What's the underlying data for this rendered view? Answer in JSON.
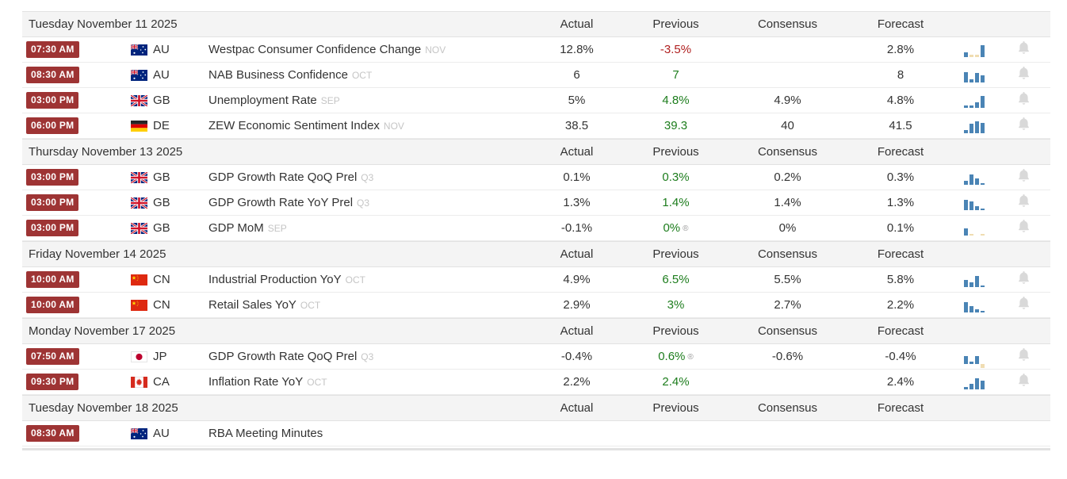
{
  "colors": {
    "time_badge_bg": "#9e3434",
    "positive_green": "#1d7d1d",
    "negative_red": "#b02020",
    "spark_blue": "#4a84b5",
    "spark_tan": "#f0ddb2",
    "bell_gray": "#d9d9d9"
  },
  "meta": {
    "revised_marker": "®"
  },
  "columns": {
    "actual": "Actual",
    "previous": "Previous",
    "consensus": "Consensus",
    "forecast": "Forecast"
  },
  "sections": [
    {
      "date": "Tuesday November 11 2025",
      "rows": [
        {
          "time": "07:30 AM",
          "country": "AU",
          "event": "Westpac Consumer Confidence Change",
          "ref": "NOV",
          "actual": "12.8%",
          "previous": "-3.5%",
          "prev_color": "red",
          "revised": false,
          "consensus": "",
          "forecast": "2.8%",
          "bell": true,
          "spark": [
            {
              "h": 6,
              "c": "blue"
            },
            {
              "h": 3,
              "c": "tan"
            },
            {
              "h": 3,
              "c": "tan"
            },
            {
              "h": 15,
              "c": "blue"
            }
          ]
        },
        {
          "time": "08:30 AM",
          "country": "AU",
          "event": "NAB Business Confidence",
          "ref": "OCT",
          "actual": "6",
          "previous": "7",
          "prev_color": "green",
          "revised": false,
          "consensus": "",
          "forecast": "8",
          "bell": true,
          "spark": [
            {
              "h": 13,
              "c": "blue"
            },
            {
              "h": 4,
              "c": "blue"
            },
            {
              "h": 12,
              "c": "blue"
            },
            {
              "h": 9,
              "c": "blue"
            }
          ]
        },
        {
          "time": "03:00 PM",
          "country": "GB",
          "event": "Unemployment Rate",
          "ref": "SEP",
          "actual": "5%",
          "previous": "4.8%",
          "prev_color": "green",
          "revised": false,
          "consensus": "4.9%",
          "forecast": "4.8%",
          "bell": true,
          "spark": [
            {
              "h": 3,
              "c": "blue"
            },
            {
              "h": 3,
              "c": "blue"
            },
            {
              "h": 7,
              "c": "blue"
            },
            {
              "h": 15,
              "c": "blue"
            }
          ]
        },
        {
          "time": "06:00 PM",
          "country": "DE",
          "event": "ZEW Economic Sentiment Index",
          "ref": "NOV",
          "actual": "38.5",
          "previous": "39.3",
          "prev_color": "green",
          "revised": false,
          "consensus": "40",
          "forecast": "41.5",
          "bell": true,
          "spark": [
            {
              "h": 4,
              "c": "blue"
            },
            {
              "h": 12,
              "c": "blue"
            },
            {
              "h": 15,
              "c": "blue"
            },
            {
              "h": 13,
              "c": "blue"
            }
          ]
        }
      ]
    },
    {
      "date": "Thursday November 13 2025",
      "rows": [
        {
          "time": "03:00 PM",
          "country": "GB",
          "event": "GDP Growth Rate QoQ Prel",
          "ref": "Q3",
          "actual": "0.1%",
          "previous": "0.3%",
          "prev_color": "green",
          "revised": false,
          "consensus": "0.2%",
          "forecast": "0.3%",
          "bell": true,
          "spark": [
            {
              "h": 5,
              "c": "blue"
            },
            {
              "h": 13,
              "c": "blue"
            },
            {
              "h": 8,
              "c": "blue"
            },
            {
              "h": 2,
              "c": "blue"
            }
          ]
        },
        {
          "time": "03:00 PM",
          "country": "GB",
          "event": "GDP Growth Rate YoY Prel",
          "ref": "Q3",
          "actual": "1.3%",
          "previous": "1.4%",
          "prev_color": "green",
          "revised": false,
          "consensus": "1.4%",
          "forecast": "1.3%",
          "bell": true,
          "spark": [
            {
              "h": 13,
              "c": "blue"
            },
            {
              "h": 11,
              "c": "blue"
            },
            {
              "h": 5,
              "c": "blue"
            },
            {
              "h": 2,
              "c": "blue"
            }
          ]
        },
        {
          "time": "03:00 PM",
          "country": "GB",
          "event": "GDP MoM",
          "ref": "SEP",
          "actual": "-0.1%",
          "previous": "0%",
          "prev_color": "green",
          "revised": true,
          "consensus": "0%",
          "forecast": "0.1%",
          "bell": true,
          "spark": [
            {
              "h": 9,
              "c": "blue"
            },
            {
              "h": 2,
              "c": "tan"
            },
            {
              "h": 0,
              "c": "tan"
            },
            {
              "h": 2,
              "c": "tan"
            }
          ]
        }
      ]
    },
    {
      "date": "Friday November 14 2025",
      "rows": [
        {
          "time": "10:00 AM",
          "country": "CN",
          "event": "Industrial Production YoY",
          "ref": "OCT",
          "actual": "4.9%",
          "previous": "6.5%",
          "prev_color": "green",
          "revised": false,
          "consensus": "5.5%",
          "forecast": "5.8%",
          "bell": true,
          "spark": [
            {
              "h": 9,
              "c": "blue"
            },
            {
              "h": 6,
              "c": "blue"
            },
            {
              "h": 14,
              "c": "blue"
            },
            {
              "h": 2,
              "c": "blue"
            }
          ]
        },
        {
          "time": "10:00 AM",
          "country": "CN",
          "event": "Retail Sales YoY",
          "ref": "OCT",
          "actual": "2.9%",
          "previous": "3%",
          "prev_color": "green",
          "revised": false,
          "consensus": "2.7%",
          "forecast": "2.2%",
          "bell": true,
          "spark": [
            {
              "h": 13,
              "c": "blue"
            },
            {
              "h": 8,
              "c": "blue"
            },
            {
              "h": 4,
              "c": "blue"
            },
            {
              "h": 2,
              "c": "blue"
            }
          ]
        }
      ]
    },
    {
      "date": "Monday November 17 2025",
      "rows": [
        {
          "time": "07:50 AM",
          "country": "JP",
          "event": "GDP Growth Rate QoQ Prel",
          "ref": "Q3",
          "actual": "-0.4%",
          "previous": "0.6%",
          "prev_color": "green",
          "revised": true,
          "consensus": "-0.6%",
          "forecast": "-0.4%",
          "bell": true,
          "spark": [
            {
              "h": 10,
              "c": "blue"
            },
            {
              "h": 3,
              "c": "blue"
            },
            {
              "h": 10,
              "c": "blue"
            },
            {
              "h": 5,
              "c": "tan",
              "neg": true
            }
          ]
        },
        {
          "time": "09:30 PM",
          "country": "CA",
          "event": "Inflation Rate YoY",
          "ref": "OCT",
          "actual": "2.2%",
          "previous": "2.4%",
          "prev_color": "green",
          "revised": false,
          "consensus": "",
          "forecast": "2.4%",
          "bell": true,
          "spark": [
            {
              "h": 3,
              "c": "blue"
            },
            {
              "h": 7,
              "c": "blue"
            },
            {
              "h": 14,
              "c": "blue"
            },
            {
              "h": 11,
              "c": "blue"
            }
          ]
        }
      ]
    },
    {
      "date": "Tuesday November 18 2025",
      "rows": [
        {
          "time": "08:30 AM",
          "country": "AU",
          "event": "RBA Meeting Minutes",
          "ref": "",
          "actual": "",
          "previous": "",
          "prev_color": "",
          "revised": false,
          "consensus": "",
          "forecast": "",
          "bell": false,
          "spark": null
        }
      ]
    }
  ]
}
